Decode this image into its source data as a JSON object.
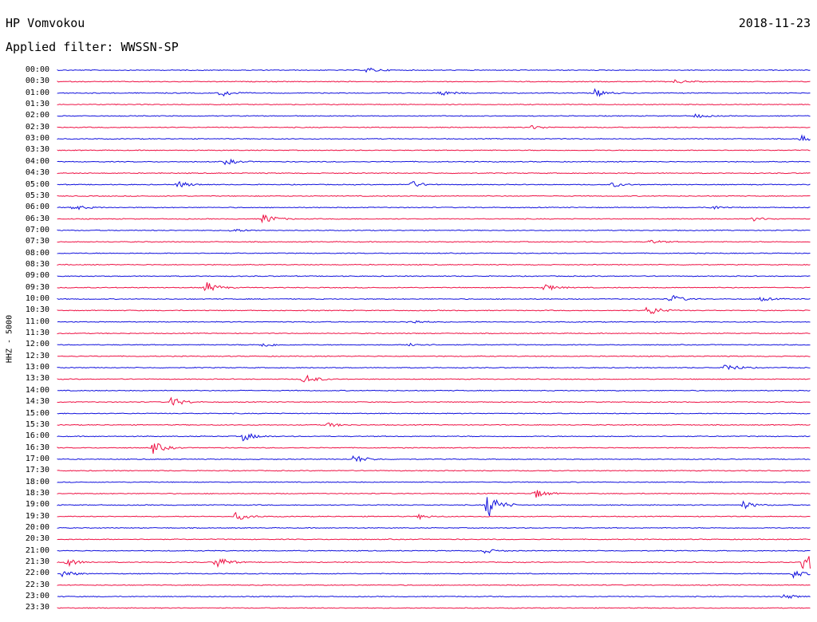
{
  "header": {
    "station": "HP Vomvokou",
    "date": "2018-11-23",
    "filter": "Applied filter: WWSSN-SP"
  },
  "channel_label": "HHZ - 5000",
  "colors": {
    "even_line": "#1010dd",
    "odd_line": "#ee1144"
  },
  "chart_data": {
    "type": "line",
    "title": "HP Vomvokou",
    "ylabel": "HHZ - 5000",
    "row_interval_minutes": 30,
    "row_labels": [
      "00:00",
      "00:30",
      "01:00",
      "01:30",
      "02:00",
      "02:30",
      "03:00",
      "03:30",
      "04:00",
      "04:30",
      "05:00",
      "05:30",
      "06:00",
      "06:30",
      "07:00",
      "07:30",
      "08:00",
      "08:30",
      "09:00",
      "09:30",
      "10:00",
      "10:30",
      "11:00",
      "11:30",
      "12:00",
      "12:30",
      "13:00",
      "13:30",
      "14:00",
      "14:30",
      "15:00",
      "15:30",
      "16:00",
      "16:30",
      "17:00",
      "17:30",
      "18:00",
      "18:30",
      "19:00",
      "19:30",
      "20:00",
      "20:30",
      "21:00",
      "21:30",
      "22:00",
      "22:30",
      "23:00",
      "23:30"
    ],
    "events": [
      {
        "row": 0,
        "minute": 12.3,
        "amp": 0.35
      },
      {
        "row": 1,
        "minute": 24.6,
        "amp": 0.25
      },
      {
        "row": 2,
        "minute": 6.5,
        "amp": 0.5
      },
      {
        "row": 2,
        "minute": 15.2,
        "amp": 0.4
      },
      {
        "row": 2,
        "minute": 21.4,
        "amp": 0.5
      },
      {
        "row": 4,
        "minute": 25.4,
        "amp": 0.25
      },
      {
        "row": 5,
        "minute": 18.9,
        "amp": 0.25
      },
      {
        "row": 6,
        "minute": 29.6,
        "amp": 0.45
      },
      {
        "row": 8,
        "minute": 6.7,
        "amp": 0.4
      },
      {
        "row": 10,
        "minute": 4.8,
        "amp": 0.45
      },
      {
        "row": 10,
        "minute": 14.0,
        "amp": 0.55
      },
      {
        "row": 10,
        "minute": 22.1,
        "amp": 0.3
      },
      {
        "row": 12,
        "minute": 0.6,
        "amp": 0.4
      },
      {
        "row": 12,
        "minute": 26.0,
        "amp": 0.3
      },
      {
        "row": 13,
        "minute": 8.2,
        "amp": 0.7
      },
      {
        "row": 13,
        "minute": 27.7,
        "amp": 0.25
      },
      {
        "row": 14,
        "minute": 6.9,
        "amp": 0.25
      },
      {
        "row": 15,
        "minute": 23.6,
        "amp": 0.25
      },
      {
        "row": 19,
        "minute": 5.9,
        "amp": 0.75
      },
      {
        "row": 19,
        "minute": 19.4,
        "amp": 0.45
      },
      {
        "row": 20,
        "minute": 24.4,
        "amp": 0.6
      },
      {
        "row": 20,
        "minute": 28.0,
        "amp": 0.25
      },
      {
        "row": 21,
        "minute": 23.5,
        "amp": 0.75
      },
      {
        "row": 22,
        "minute": 14.0,
        "amp": 0.35
      },
      {
        "row": 24,
        "minute": 8.1,
        "amp": 0.35
      },
      {
        "row": 24,
        "minute": 14.0,
        "amp": 0.3
      },
      {
        "row": 26,
        "minute": 26.6,
        "amp": 0.6
      },
      {
        "row": 27,
        "minute": 9.8,
        "amp": 0.7
      },
      {
        "row": 29,
        "minute": 4.5,
        "amp": 0.7
      },
      {
        "row": 31,
        "minute": 10.7,
        "amp": 0.35
      },
      {
        "row": 32,
        "minute": 7.4,
        "amp": 0.6
      },
      {
        "row": 33,
        "minute": 3.8,
        "amp": 0.8
      },
      {
        "row": 34,
        "minute": 11.8,
        "amp": 0.55
      },
      {
        "row": 37,
        "minute": 19.0,
        "amp": 0.6
      },
      {
        "row": 38,
        "minute": 17.1,
        "amp": 1.8
      },
      {
        "row": 38,
        "minute": 27.3,
        "amp": 0.5
      },
      {
        "row": 39,
        "minute": 7.1,
        "amp": 0.55
      },
      {
        "row": 39,
        "minute": 14.4,
        "amp": 0.3
      },
      {
        "row": 42,
        "minute": 16.9,
        "amp": 0.4
      },
      {
        "row": 43,
        "minute": 0.3,
        "amp": 0.6
      },
      {
        "row": 43,
        "minute": 6.3,
        "amp": 0.9
      },
      {
        "row": 43,
        "minute": 29.7,
        "amp": 1.6
      },
      {
        "row": 44,
        "minute": 0.2,
        "amp": 0.45
      },
      {
        "row": 44,
        "minute": 29.3,
        "amp": 0.5
      },
      {
        "row": 46,
        "minute": 28.9,
        "amp": 0.35
      }
    ],
    "grid": false
  }
}
